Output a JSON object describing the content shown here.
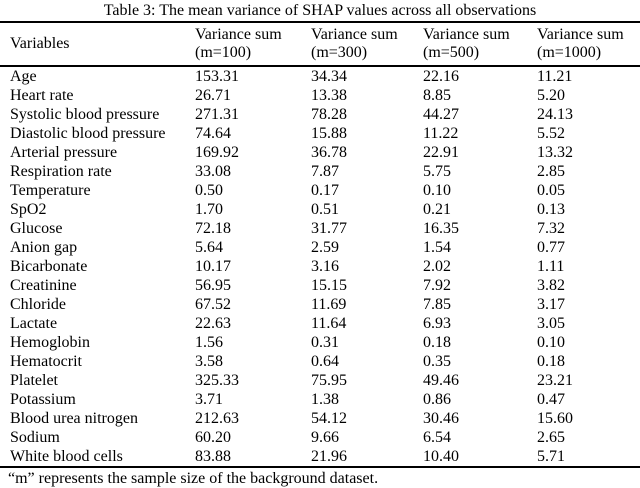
{
  "title": "Table 3: The mean variance of SHAP values across all observations",
  "table": {
    "variables_header": "Variables",
    "value_columns": [
      {
        "line1": "Variance sum",
        "line2": "(m=100)"
      },
      {
        "line1": "Variance sum",
        "line2": "(m=300)"
      },
      {
        "line1": "Variance sum",
        "line2": "(m=500)"
      },
      {
        "line1": "Variance sum",
        "line2": "(m=1000)"
      }
    ],
    "rows": [
      {
        "variable": "Age",
        "values": [
          "153.31",
          "34.34",
          "22.16",
          "11.21"
        ]
      },
      {
        "variable": "Heart rate",
        "values": [
          "26.71",
          "13.38",
          "8.85",
          "5.20"
        ]
      },
      {
        "variable": "Systolic blood pressure",
        "values": [
          "271.31",
          "78.28",
          "44.27",
          "24.13"
        ]
      },
      {
        "variable": "Diastolic blood pressure",
        "values": [
          "74.64",
          "15.88",
          "11.22",
          "5.52"
        ]
      },
      {
        "variable": "Arterial pressure",
        "values": [
          "169.92",
          "36.78",
          "22.91",
          "13.32"
        ]
      },
      {
        "variable": "Respiration rate",
        "values": [
          "33.08",
          "7.87",
          "5.75",
          "2.85"
        ]
      },
      {
        "variable": "Temperature",
        "values": [
          "0.50",
          "0.17",
          "0.10",
          "0.05"
        ]
      },
      {
        "variable": "SpO2",
        "values": [
          "1.70",
          "0.51",
          "0.21",
          "0.13"
        ]
      },
      {
        "variable": "Glucose",
        "values": [
          "72.18",
          "31.77",
          "16.35",
          "7.32"
        ]
      },
      {
        "variable": "Anion gap",
        "values": [
          "5.64",
          "2.59",
          "1.54",
          "0.77"
        ]
      },
      {
        "variable": "Bicarbonate",
        "values": [
          "10.17",
          "3.16",
          "2.02",
          "1.11"
        ]
      },
      {
        "variable": "Creatinine",
        "values": [
          "56.95",
          "15.15",
          "7.92",
          "3.82"
        ]
      },
      {
        "variable": "Chloride",
        "values": [
          "67.52",
          "11.69",
          "7.85",
          "3.17"
        ]
      },
      {
        "variable": "Lactate",
        "values": [
          "22.63",
          "11.64",
          "6.93",
          "3.05"
        ]
      },
      {
        "variable": "Hemoglobin",
        "values": [
          "1.56",
          "0.31",
          "0.18",
          "0.10"
        ]
      },
      {
        "variable": "Hematocrit",
        "values": [
          "3.58",
          "0.64",
          "0.35",
          "0.18"
        ]
      },
      {
        "variable": "Platelet",
        "values": [
          "325.33",
          "75.95",
          "49.46",
          "23.21"
        ]
      },
      {
        "variable": "Potassium",
        "values": [
          "3.71",
          "1.38",
          "0.86",
          "0.47"
        ]
      },
      {
        "variable": "Blood urea nitrogen",
        "values": [
          "212.63",
          "54.12",
          "30.46",
          "15.60"
        ]
      },
      {
        "variable": "Sodium",
        "values": [
          "60.20",
          "9.66",
          "6.54",
          "2.65"
        ]
      },
      {
        "variable": "White blood cells",
        "values": [
          "83.88",
          "21.96",
          "10.40",
          "5.71"
        ]
      }
    ]
  },
  "footnote": "“m” represents the sample size of the background dataset.",
  "colors": {
    "text": "#000000",
    "background": "#ffffff",
    "rule": "#000000"
  }
}
